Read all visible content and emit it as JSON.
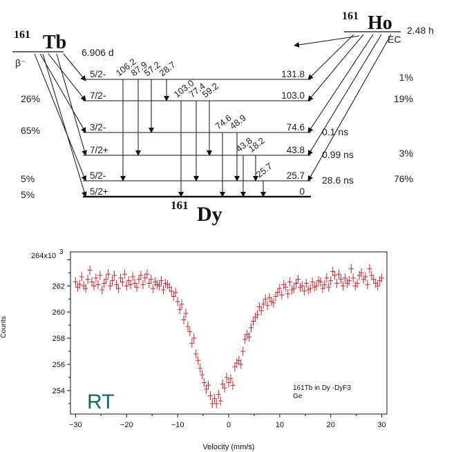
{
  "scheme": {
    "parent_tb": {
      "mass": "161",
      "symbol": "Tb",
      "halflife": "6.906 d",
      "decay_mode": "β⁻"
    },
    "parent_ho": {
      "mass": "161",
      "symbol": "Ho",
      "halflife": "2.48 h",
      "decay_mode": "EC"
    },
    "daughter": {
      "mass": "161",
      "symbol": "Dy"
    },
    "levels": [
      {
        "spin": "5/2-",
        "energy": "131.8",
        "tb_branch": "",
        "ho_branch": "1%",
        "lifetime": ""
      },
      {
        "spin": "7/2-",
        "energy": "103.0",
        "tb_branch": "26%",
        "ho_branch": "19%",
        "lifetime": ""
      },
      {
        "spin": "3/2-",
        "energy": "74.6",
        "tb_branch": "65%",
        "ho_branch": "",
        "lifetime": "0.1 ns"
      },
      {
        "spin": "7/2+",
        "energy": "43.8",
        "tb_branch": "",
        "ho_branch": "3%",
        "lifetime": "0.99 ns"
      },
      {
        "spin": "5/2-",
        "energy": "25.7",
        "tb_branch": "5%",
        "ho_branch": "76%",
        "lifetime": "28.6 ns"
      },
      {
        "spin": "5/2+",
        "energy": "0",
        "tb_branch": "5%",
        "ho_branch": "",
        "lifetime": ""
      }
    ],
    "gammas": [
      "106.2",
      "87.9",
      "57.2",
      "28.7",
      "103.0",
      "77.4",
      "59.2",
      "74.6",
      "48.9",
      "43.8",
      "18.2",
      "25.7"
    ]
  },
  "chart_data": {
    "type": "scatter",
    "title": "",
    "xlabel": "Velocity (mm/s)",
    "ylabel": "Counts",
    "y_multiplier_label": "264x10",
    "y_multiplier_exp": "3",
    "xlim": [
      -31,
      31
    ],
    "ylim": [
      252.2,
      264.6
    ],
    "x_ticks": [
      "−30",
      "−20",
      "−10",
      "0",
      "10",
      "20",
      "30"
    ],
    "y_ticks": [
      "262",
      "260",
      "258",
      "256",
      "254"
    ],
    "series_color": "#d62028",
    "error_bar": 0.35,
    "annotation_large": "RT",
    "annotation_large_color": "#0f6b64",
    "annotation_small": [
      "161Tb in Dy -DyF3",
      "Ge"
    ],
    "x": [
      -30,
      -29.6,
      -29.2,
      -28.8,
      -28.4,
      -28,
      -27.6,
      -27.2,
      -26.8,
      -26.4,
      -26,
      -25.6,
      -25.2,
      -24.8,
      -24.4,
      -24,
      -23.6,
      -23.2,
      -22.8,
      -22.4,
      -22,
      -21.6,
      -21.2,
      -20.8,
      -20.4,
      -20,
      -19.6,
      -19.2,
      -18.8,
      -18.4,
      -18,
      -17.6,
      -17.2,
      -16.8,
      -16.4,
      -16,
      -15.6,
      -15.2,
      -14.8,
      -14.4,
      -14,
      -13.6,
      -13.2,
      -12.8,
      -12.4,
      -12,
      -11.6,
      -11.2,
      -10.8,
      -10.4,
      -10,
      -9.6,
      -9.2,
      -8.8,
      -8.4,
      -8,
      -7.6,
      -7.2,
      -6.8,
      -6.4,
      -6,
      -5.6,
      -5.2,
      -4.8,
      -4.4,
      -4,
      -3.6,
      -3.2,
      -2.8,
      -2.4,
      -2,
      -1.6,
      -1.2,
      -0.8,
      -0.4,
      0,
      0.4,
      0.8,
      1.2,
      1.6,
      2,
      2.4,
      2.8,
      3.2,
      3.6,
      4,
      4.4,
      4.8,
      5.2,
      5.6,
      6,
      6.4,
      6.8,
      7.2,
      7.6,
      8,
      8.4,
      8.8,
      9.2,
      9.6,
      10,
      10.4,
      10.8,
      11.2,
      11.6,
      12,
      12.4,
      12.8,
      13.2,
      13.6,
      14,
      14.4,
      14.8,
      15.2,
      15.6,
      16,
      16.4,
      16.8,
      17.2,
      17.6,
      18,
      18.4,
      18.8,
      19.2,
      19.6,
      20,
      20.4,
      20.8,
      21.2,
      21.6,
      22,
      22.4,
      22.8,
      23.2,
      23.6,
      24,
      24.4,
      24.8,
      25.2,
      25.6,
      26,
      26.4,
      26.8,
      27.2,
      27.6,
      28,
      28.4,
      28.8,
      29.2,
      29.6,
      30
    ],
    "y": [
      262.3,
      261.9,
      262.1,
      262.7,
      262.0,
      261.8,
      262.5,
      263.2,
      262.3,
      262.0,
      262.6,
      262.1,
      262.8,
      261.7,
      262.2,
      262.5,
      262.9,
      262.0,
      262.4,
      262.8,
      262.1,
      261.8,
      262.6,
      262.3,
      262.9,
      262.0,
      262.4,
      262.1,
      262.7,
      262.2,
      261.9,
      262.5,
      262.8,
      262.1,
      262.6,
      262.9,
      262.2,
      262.5,
      261.8,
      262.3,
      262.1,
      262.0,
      262.4,
      261.7,
      262.2,
      262.1,
      261.9,
      261.6,
      261.2,
      261.5,
      260.8,
      260.2,
      260.6,
      259.4,
      259.9,
      258.9,
      258.5,
      257.6,
      258.0,
      256.8,
      256.3,
      255.7,
      255.2,
      254.6,
      254.1,
      254.4,
      253.6,
      253.0,
      253.4,
      253.0,
      253.7,
      253.2,
      254.5,
      254.2,
      255.0,
      254.6,
      254.9,
      254.4,
      255.8,
      256.1,
      256.3,
      256.0,
      257.0,
      257.9,
      258.3,
      258.1,
      258.8,
      259.3,
      259.6,
      259.8,
      260.4,
      260.1,
      260.6,
      261.0,
      260.5,
      261.1,
      260.8,
      260.7,
      261.2,
      261.5,
      261.8,
      261.3,
      262.1,
      261.9,
      261.4,
      262.3,
      261.7,
      261.8,
      262.2,
      262.5,
      261.9,
      262.0,
      261.6,
      262.2,
      261.7,
      261.8,
      262.3,
      261.9,
      262.0,
      262.4,
      262.3,
      261.8,
      262.1,
      262.6,
      261.9,
      262.4,
      263.1,
      262.8,
      262.2,
      262.9,
      262.5,
      262.0,
      262.6,
      262.2,
      262.4,
      263.3,
      262.6,
      262.0,
      262.2,
      262.8,
      263.0,
      262.5,
      262.7,
      262.1,
      263.3,
      262.8,
      262.5,
      262.2,
      262.0,
      262.4,
      262.6
    ]
  }
}
